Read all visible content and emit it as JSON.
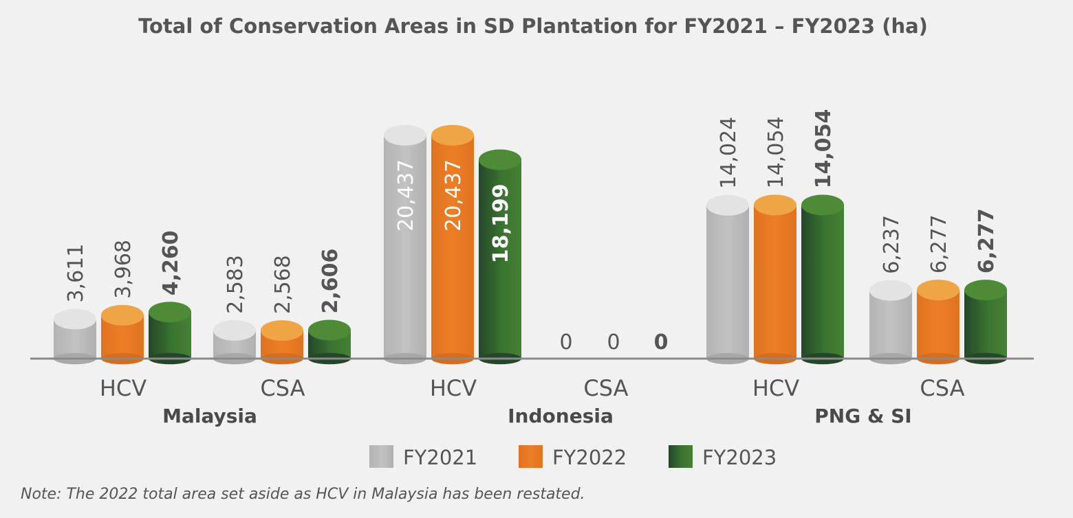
{
  "colors": {
    "FY2021": {
      "body": "#bdbdbe",
      "top": "#e3e3e3",
      "dark": "#a9a9aa"
    },
    "FY2022": {
      "body": "#e87a24",
      "top": "#f0a545",
      "dark": "#d86c1a"
    },
    "FY2023": {
      "body": "#3f7f30",
      "top": "#4e8b36",
      "dark": "#24472a"
    }
  },
  "chart_data": {
    "type": "bar",
    "title": "Total of Conservation Areas in SD Plantation for FY2021 – FY2023 (ha)",
    "groups": [
      {
        "region": "Malaysia",
        "categories": [
          {
            "label": "HCV",
            "values": [
              3611,
              3968,
              4260
            ],
            "labels": [
              "3,611",
              "3,968",
              "4,260"
            ]
          },
          {
            "label": "CSA",
            "values": [
              2583,
              2568,
              2606
            ],
            "labels": [
              "2,583",
              "2,568",
              "2,606"
            ]
          }
        ]
      },
      {
        "region": "Indonesia",
        "categories": [
          {
            "label": "HCV",
            "values": [
              20437,
              20437,
              18199
            ],
            "labels": [
              "20,437",
              "20,437",
              "18,199"
            ]
          },
          {
            "label": "CSA",
            "values": [
              0,
              0,
              0
            ],
            "labels": [
              "0",
              "0",
              "0"
            ]
          }
        ]
      },
      {
        "region": "PNG & SI",
        "categories": [
          {
            "label": "HCV",
            "values": [
              14024,
              14054,
              14054
            ],
            "labels": [
              "14,024",
              "14,054",
              "14,054"
            ]
          },
          {
            "label": "CSA",
            "values": [
              6237,
              6277,
              6277
            ],
            "labels": [
              "6,237",
              "6,277",
              "6,277"
            ]
          }
        ]
      }
    ],
    "series": [
      {
        "name": "FY2021"
      },
      {
        "name": "FY2022"
      },
      {
        "name": "FY2023"
      }
    ],
    "value_labels_bold_series": "FY2023",
    "ylim": [
      0,
      22000
    ],
    "grid": false,
    "legend": "bottom-center"
  },
  "note": "Note: The 2022 total area set aside as HCV in Malaysia has been restated."
}
